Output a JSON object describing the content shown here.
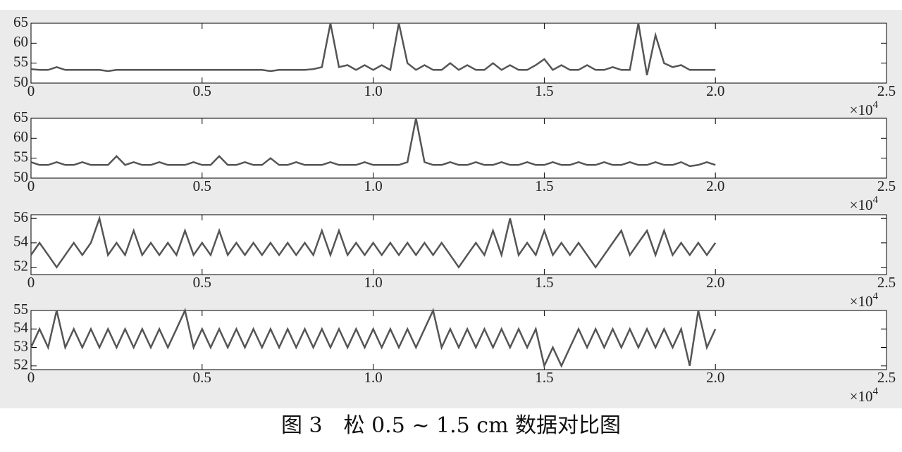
{
  "chart_data": [
    {
      "type": "line",
      "x": [
        0,
        250,
        500,
        750,
        1000,
        1250,
        1500,
        1750,
        2000,
        2250,
        2500,
        2750,
        3000,
        3250,
        3500,
        3750,
        4000,
        4250,
        4500,
        4750,
        5000,
        5250,
        5500,
        5750,
        6000,
        6250,
        6500,
        6750,
        7000,
        7250,
        7500,
        7750,
        8000,
        8250,
        8500,
        8750,
        9000,
        9250,
        9500,
        9750,
        10000,
        10250,
        10500,
        10750,
        11000,
        11250,
        11500,
        11750,
        12000,
        12250,
        12500,
        12750,
        13000,
        13250,
        13500,
        13750,
        14000,
        14250,
        14500,
        14750,
        15000,
        15250,
        15500,
        15750,
        16000,
        16250,
        16500,
        16750,
        17000,
        17250,
        17500,
        17750,
        18000,
        18250,
        18500,
        18750,
        19000,
        19250,
        19500,
        19750,
        20000
      ],
      "series": [
        {
          "color": "#555555",
          "values": [
            53.5,
            53.3,
            53.3,
            54,
            53.3,
            53.3,
            53.3,
            53.3,
            53.3,
            53,
            53.3,
            53.3,
            53.3,
            53.3,
            53.3,
            53.3,
            53.3,
            53.3,
            53.3,
            53.3,
            53.3,
            53.3,
            53.3,
            53.3,
            53.3,
            53.3,
            53.3,
            53.3,
            53,
            53.3,
            53.3,
            53.3,
            53.3,
            53.5,
            54,
            65,
            54,
            54.5,
            53.3,
            54.5,
            53.3,
            54.5,
            53.3,
            65,
            55,
            53.3,
            54.5,
            53.3,
            53.3,
            55,
            53.3,
            54.5,
            53.3,
            53.3,
            55,
            53.3,
            54.5,
            53.3,
            53.3,
            54.5,
            56,
            53.3,
            54.5,
            53.3,
            53.3,
            54.5,
            53.3,
            53.3,
            54,
            53.3,
            53.3,
            65,
            52,
            62,
            55,
            54,
            54.5,
            53.3,
            53.3,
            53.3,
            53.3
          ]
        }
      ],
      "xlim": [
        0,
        25000
      ],
      "xticks": [
        0,
        {
          "value": 5000,
          "label": "0.5"
        },
        {
          "value": 10000,
          "label": "1.0"
        },
        {
          "value": 15000,
          "label": "1.5"
        },
        {
          "value": 20000,
          "label": "2.0"
        },
        {
          "value": 25000,
          "label": "2.5"
        }
      ],
      "ylim": [
        50,
        65
      ],
      "yticks": [
        50,
        55,
        60,
        65
      ],
      "x_multiplier": {
        "base": "×10",
        "exponent": "4"
      }
    },
    {
      "type": "line",
      "x": [
        0,
        250,
        500,
        750,
        1000,
        1250,
        1500,
        1750,
        2000,
        2250,
        2500,
        2750,
        3000,
        3250,
        3500,
        3750,
        4000,
        4250,
        4500,
        4750,
        5000,
        5250,
        5500,
        5750,
        6000,
        6250,
        6500,
        6750,
        7000,
        7250,
        7500,
        7750,
        8000,
        8250,
        8500,
        8750,
        9000,
        9250,
        9500,
        9750,
        10000,
        10250,
        10500,
        10750,
        11000,
        11250,
        11500,
        11750,
        12000,
        12250,
        12500,
        12750,
        13000,
        13250,
        13500,
        13750,
        14000,
        14250,
        14500,
        14750,
        15000,
        15250,
        15500,
        15750,
        16000,
        16250,
        16500,
        16750,
        17000,
        17250,
        17500,
        17750,
        18000,
        18250,
        18500,
        18750,
        19000,
        19250,
        19500,
        19750,
        20000
      ],
      "series": [
        {
          "color": "#555555",
          "values": [
            54,
            53.3,
            53.3,
            54,
            53.3,
            53.3,
            54,
            53.3,
            53.3,
            53.3,
            55.5,
            53.3,
            54,
            53.3,
            53.3,
            54,
            53.3,
            53.3,
            53.3,
            54,
            53.3,
            53.3,
            55.5,
            53.3,
            53.3,
            54,
            53.3,
            53.3,
            55,
            53.3,
            53.3,
            54,
            53.3,
            53.3,
            53.3,
            54,
            53.3,
            53.3,
            53.3,
            54,
            53.3,
            53.3,
            53.3,
            53.3,
            54,
            65,
            54,
            53.3,
            53.3,
            54,
            53.3,
            53.3,
            54,
            53.3,
            53.3,
            54,
            53.3,
            53.3,
            54,
            53.3,
            53.3,
            54,
            53.3,
            53.3,
            54,
            53.3,
            53.3,
            54,
            53.3,
            53.3,
            54,
            53.3,
            53.3,
            54,
            53.3,
            53.3,
            54,
            53,
            53.3,
            54,
            53.3
          ]
        }
      ],
      "xlim": [
        0,
        25000
      ],
      "xticks": [
        0,
        {
          "value": 5000,
          "label": "0.5"
        },
        {
          "value": 10000,
          "label": "1.0"
        },
        {
          "value": 15000,
          "label": "1.5"
        },
        {
          "value": 20000,
          "label": "2.0"
        },
        {
          "value": 25000,
          "label": "2.5"
        }
      ],
      "ylim": [
        50,
        65
      ],
      "yticks": [
        50,
        55,
        60,
        65
      ],
      "x_multiplier": {
        "base": "×10",
        "exponent": "4"
      }
    },
    {
      "type": "line",
      "x": [
        0,
        250,
        500,
        750,
        1000,
        1250,
        1500,
        1750,
        2000,
        2250,
        2500,
        2750,
        3000,
        3250,
        3500,
        3750,
        4000,
        4250,
        4500,
        4750,
        5000,
        5250,
        5500,
        5750,
        6000,
        6250,
        6500,
        6750,
        7000,
        7250,
        7500,
        7750,
        8000,
        8250,
        8500,
        8750,
        9000,
        9250,
        9500,
        9750,
        10000,
        10250,
        10500,
        10750,
        11000,
        11250,
        11500,
        11750,
        12000,
        12250,
        12500,
        12750,
        13000,
        13250,
        13500,
        13750,
        14000,
        14250,
        14500,
        14750,
        15000,
        15250,
        15500,
        15750,
        16000,
        16250,
        16500,
        16750,
        17000,
        17250,
        17500,
        17750,
        18000,
        18250,
        18500,
        18750,
        19000,
        19250,
        19500,
        19750,
        20000
      ],
      "series": [
        {
          "color": "#555555",
          "values": [
            53,
            54,
            53,
            52,
            53,
            54,
            53,
            54,
            56,
            53,
            54,
            53,
            55,
            53,
            54,
            53,
            54,
            53,
            55,
            53,
            54,
            53,
            55,
            53,
            54,
            53,
            54,
            53,
            54,
            53,
            54,
            53,
            54,
            53,
            55,
            53,
            55,
            53,
            54,
            53,
            54,
            53,
            54,
            53,
            54,
            53,
            54,
            53,
            54,
            53,
            52,
            53,
            54,
            53,
            55,
            53,
            56,
            53,
            54,
            53,
            55,
            53,
            54,
            53,
            54,
            53,
            52,
            53,
            54,
            55,
            53,
            54,
            55,
            53,
            55,
            53,
            54,
            53,
            54,
            53,
            54
          ]
        }
      ],
      "xlim": [
        0,
        25000
      ],
      "xticks": [
        0,
        {
          "value": 5000,
          "label": "0.5"
        },
        {
          "value": 10000,
          "label": "1.0"
        },
        {
          "value": 15000,
          "label": "1.5"
        },
        {
          "value": 20000,
          "label": "2.0"
        },
        {
          "value": 25000,
          "label": "2.5"
        }
      ],
      "ylim": [
        51.4,
        56.3
      ],
      "yticks": [
        52,
        54,
        56
      ],
      "x_multiplier": {
        "base": "×10",
        "exponent": "4"
      }
    },
    {
      "type": "line",
      "x": [
        0,
        250,
        500,
        750,
        1000,
        1250,
        1500,
        1750,
        2000,
        2250,
        2500,
        2750,
        3000,
        3250,
        3500,
        3750,
        4000,
        4250,
        4500,
        4750,
        5000,
        5250,
        5500,
        5750,
        6000,
        6250,
        6500,
        6750,
        7000,
        7250,
        7500,
        7750,
        8000,
        8250,
        8500,
        8750,
        9000,
        9250,
        9500,
        9750,
        10000,
        10250,
        10500,
        10750,
        11000,
        11250,
        11500,
        11750,
        12000,
        12250,
        12500,
        12750,
        13000,
        13250,
        13500,
        13750,
        14000,
        14250,
        14500,
        14750,
        15000,
        15250,
        15500,
        15750,
        16000,
        16250,
        16500,
        16750,
        17000,
        17250,
        17500,
        17750,
        18000,
        18250,
        18500,
        18750,
        19000,
        19250,
        19500,
        19750,
        20000
      ],
      "series": [
        {
          "color": "#555555",
          "values": [
            53,
            54,
            53,
            55,
            53,
            54,
            53,
            54,
            53,
            54,
            53,
            54,
            53,
            54,
            53,
            54,
            53,
            54,
            55,
            53,
            54,
            53,
            54,
            53,
            54,
            53,
            54,
            53,
            54,
            53,
            54,
            53,
            54,
            53,
            54,
            53,
            54,
            53,
            54,
            53,
            54,
            53,
            54,
            53,
            54,
            53,
            54,
            55,
            53,
            54,
            53,
            54,
            53,
            54,
            53,
            54,
            53,
            54,
            53,
            54,
            52,
            53,
            52,
            53,
            54,
            53,
            54,
            53,
            54,
            53,
            54,
            53,
            54,
            53,
            54,
            53,
            54,
            52,
            55,
            53,
            54
          ]
        }
      ],
      "xlim": [
        0,
        25000
      ],
      "xticks": [
        0,
        {
          "value": 5000,
          "label": "0.5"
        },
        {
          "value": 10000,
          "label": "1.0"
        },
        {
          "value": 15000,
          "label": "1.5"
        },
        {
          "value": 20000,
          "label": "2.0"
        },
        {
          "value": 25000,
          "label": "2.5"
        }
      ],
      "ylim": [
        51.8,
        55
      ],
      "yticks": [
        52,
        53,
        54,
        55
      ],
      "x_multiplier": {
        "base": "×10",
        "exponent": "4"
      }
    }
  ],
  "caption": "图 3　松 0.5 ~ 1.5 cm 数据对比图"
}
